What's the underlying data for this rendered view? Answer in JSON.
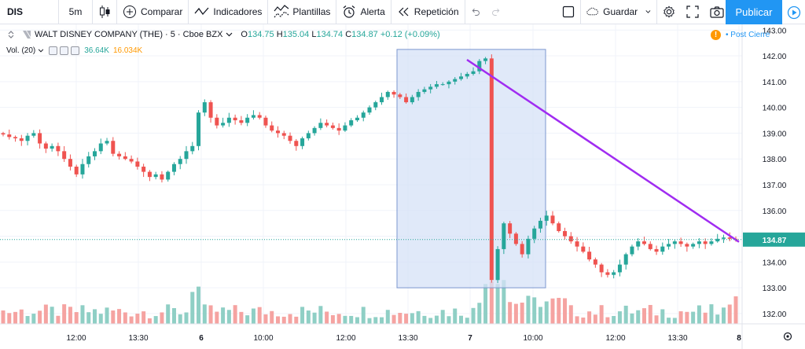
{
  "toolbar": {
    "symbol": "DIS",
    "interval": "5m",
    "compare": "Comparar",
    "indicators": "Indicadores",
    "templates": "Plantillas",
    "alert": "Alerta",
    "replay": "Repetición",
    "save": "Guardar",
    "publish": "Publicar"
  },
  "legend": {
    "title": "WALT DISNEY COMPANY (THE) · 5 · Cboe BZX",
    "o_label": "O",
    "o": "134.75",
    "h_label": "H",
    "h": "135.04",
    "l_label": "L",
    "l": "134.74",
    "c_label": "C",
    "c": "134.87",
    "change": "+0.12 (+0.09%)",
    "vol_label": "Vol. (20)",
    "vol_value": "36.64K",
    "vol_ma": "16.034K",
    "post_market": "Post Cierre",
    "post_icon_text": "!"
  },
  "colors": {
    "up": "#26a69a",
    "down": "#ef5350",
    "vol_up": "#8fcfc5",
    "vol_down": "#f5a3a1",
    "trendline": "#a02cf1",
    "box_fill": "#d6e2f7",
    "box_stroke": "#7b97cf",
    "price_line": "#26a69a",
    "price_badge": "#26a69a"
  },
  "chart_data": {
    "type": "candlestick",
    "symbol": "DIS",
    "interval": "5m",
    "y_ticks": [
      "143.00",
      "142.00",
      "141.00",
      "140.00",
      "139.00",
      "138.00",
      "137.00",
      "136.00",
      "135.00",
      "134.00",
      "133.00",
      "132.00"
    ],
    "y_range": [
      131.6,
      143.1
    ],
    "x_tick_labels": [
      "12:00",
      "13:30",
      "6",
      "10:00",
      "12:00",
      "13:30",
      "7",
      "10:00",
      "12:00",
      "13:30",
      "8"
    ],
    "current_price": "134.87",
    "drawing_box": {
      "x_from": "13:00 (day 6)",
      "x_to": "10:15 (day 7)",
      "y_from": 133.0,
      "y_to": 142.25
    },
    "trendline": {
      "from": 141.85,
      "to": 134.78
    },
    "path": [
      138.95,
      138.85,
      138.8,
      138.7,
      138.9,
      139.0,
      138.6,
      138.4,
      138.5,
      138.3,
      138.0,
      137.7,
      137.4,
      137.8,
      138.1,
      138.3,
      138.6,
      138.7,
      138.2,
      138.1,
      138.0,
      137.9,
      137.7,
      137.5,
      137.3,
      137.4,
      137.2,
      137.5,
      137.8,
      138.0,
      138.3,
      138.5,
      139.8,
      140.2,
      139.6,
      139.3,
      139.4,
      139.6,
      139.5,
      139.4,
      139.6,
      139.7,
      139.6,
      139.3,
      139.1,
      139.0,
      138.9,
      138.7,
      138.5,
      138.8,
      139.0,
      139.2,
      139.4,
      139.3,
      139.2,
      139.1,
      139.3,
      139.5,
      139.6,
      139.8,
      140.0,
      140.2,
      140.4,
      140.6,
      140.5,
      140.4,
      140.2,
      140.4,
      140.6,
      140.7,
      140.8,
      140.9,
      140.9,
      141.0,
      141.1,
      141.2,
      141.3,
      141.4,
      141.8,
      141.9,
      133.3,
      134.5,
      135.5,
      135.1,
      134.7,
      134.3,
      134.9,
      135.3,
      135.6,
      135.8,
      135.5,
      135.2,
      135.0,
      134.8,
      134.6,
      134.4,
      134.1,
      133.9,
      133.6,
      133.5,
      133.6,
      133.9,
      134.3,
      134.6,
      134.8,
      134.7,
      134.5,
      134.4,
      134.6,
      134.7,
      134.8,
      134.7,
      134.6,
      134.7,
      134.8,
      134.7,
      134.8,
      134.9,
      134.95,
      134.9,
      134.87
    ]
  }
}
